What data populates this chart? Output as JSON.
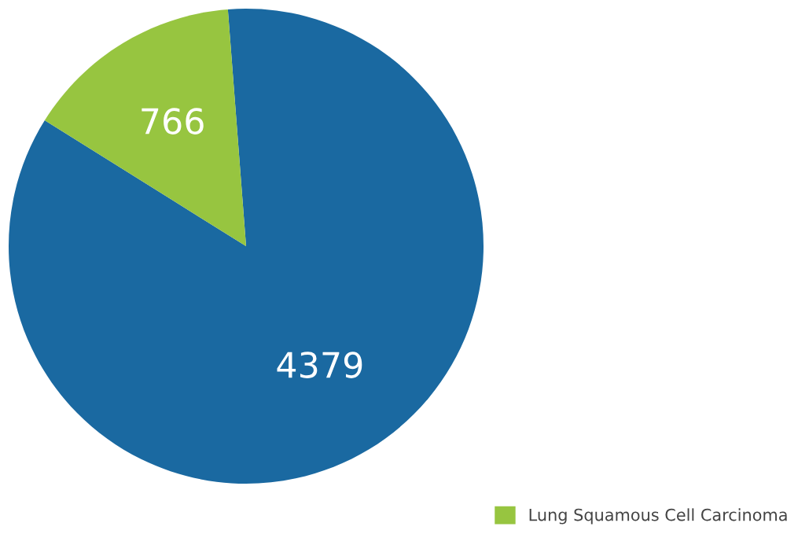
{
  "chart_data": {
    "type": "pie",
    "categories": [
      null,
      "Lung Squamous Cell Carcinoma"
    ],
    "values": [
      4379,
      766
    ],
    "colors": [
      "#1a69a1",
      "#97c540"
    ],
    "data_labels": true,
    "legend": "bottom right"
  }
}
